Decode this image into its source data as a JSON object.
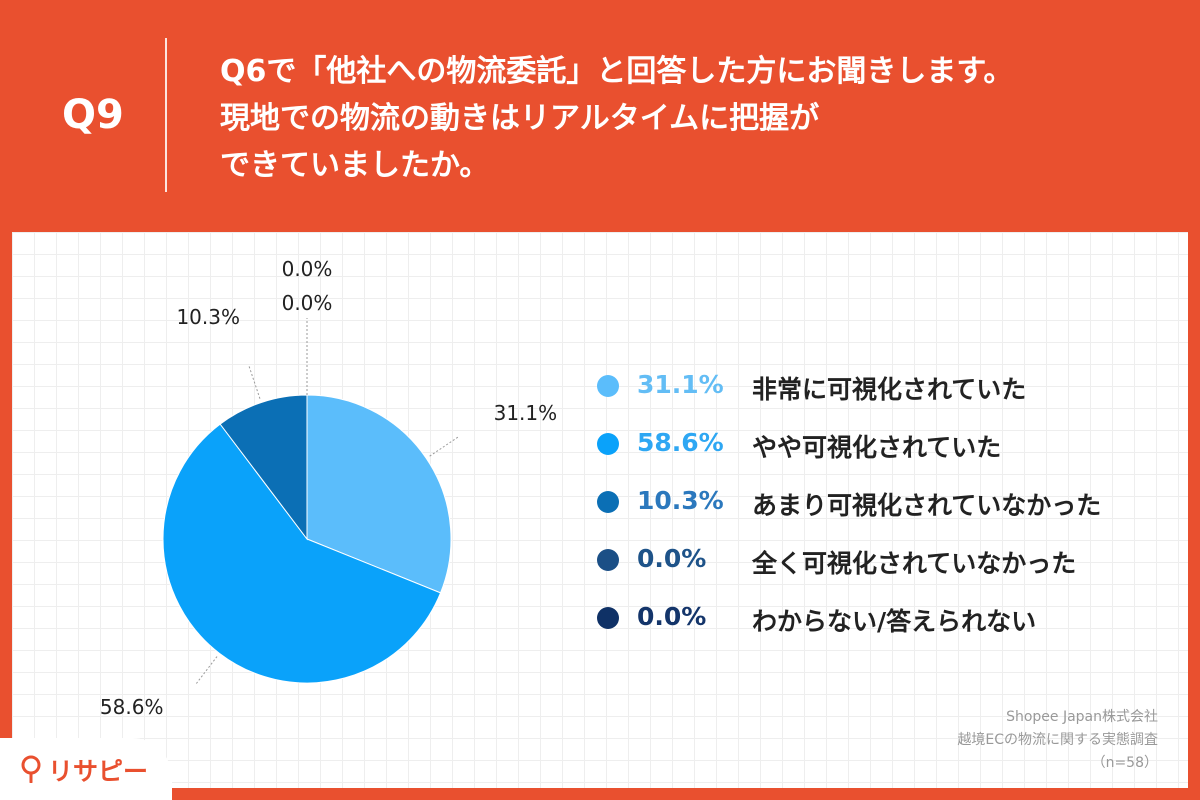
{
  "header": {
    "qnum": "Q9",
    "question_lines": [
      "Q6で「他社への物流委託」と回答した方にお聞きします。",
      "現地での物流の動きはリアルタイムに把握が",
      "できていましたか。"
    ]
  },
  "chart_data": {
    "type": "pie",
    "categories": [
      "非常に可視化されていた",
      "やや可視化されていた",
      "あまり可視化されていなかった",
      "全く可視化されていなかった",
      "わからない/答えられない"
    ],
    "values": [
      31.1,
      58.6,
      10.3,
      0.0,
      0.0
    ],
    "value_labels": [
      "31.1%",
      "58.6%",
      "10.3%",
      "0.0%",
      "0.0%"
    ],
    "colors": [
      "#5bbdfb",
      "#0aa2fa",
      "#0b6fb5",
      "#1b4f86",
      "#0f3166"
    ],
    "legend_text_colors": [
      "#63bdf5",
      "#2ea7f3",
      "#2b78bd",
      "#1e5389",
      "#14356a"
    ],
    "legend_position": "right",
    "start_angle_deg": 0,
    "direction": "clockwise"
  },
  "source": {
    "lines": [
      "Shopee Japan株式会社",
      "越境ECの物流に関する実態調査",
      "（n=58）"
    ]
  },
  "logo": {
    "text": "リサピー"
  }
}
